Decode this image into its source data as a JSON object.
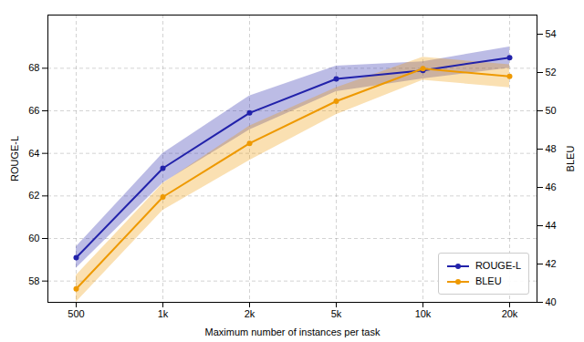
{
  "chart_data": {
    "type": "line",
    "xlabel": "Maximum number of instances per task",
    "ylabel": "ROUGE-L",
    "y2label": "BLEU",
    "categories": [
      "500",
      "1k",
      "2k",
      "5k",
      "10k",
      "20k"
    ],
    "series": [
      {
        "name": "ROUGE-L",
        "color": "#2222aa",
        "marker": "circle",
        "values": [
          59.1,
          63.3,
          65.9,
          67.5,
          67.9,
          68.5
        ],
        "upper": [
          59.6,
          64.0,
          66.7,
          68.1,
          68.3,
          69.0
        ],
        "lower": [
          58.6,
          62.6,
          65.1,
          66.9,
          67.5,
          68.0
        ]
      },
      {
        "name": "BLEU",
        "color": "#ee9900",
        "marker": "circle",
        "axis": "y2",
        "values": [
          40.7,
          45.5,
          48.3,
          50.5,
          52.2,
          51.8
        ],
        "upper": [
          41.4,
          46.2,
          49.2,
          51.2,
          52.8,
          52.4
        ],
        "lower": [
          40.0,
          44.8,
          47.4,
          49.8,
          51.6,
          51.2
        ]
      }
    ],
    "ylim": [
      57.0,
      70.5
    ],
    "yticks": [
      58,
      60,
      62,
      64,
      66,
      68
    ],
    "y2lim": [
      40.0,
      55.0
    ],
    "y2ticks": [
      40,
      42,
      44,
      46,
      48,
      50,
      52,
      54
    ],
    "grid": true,
    "legend": "lower right"
  }
}
